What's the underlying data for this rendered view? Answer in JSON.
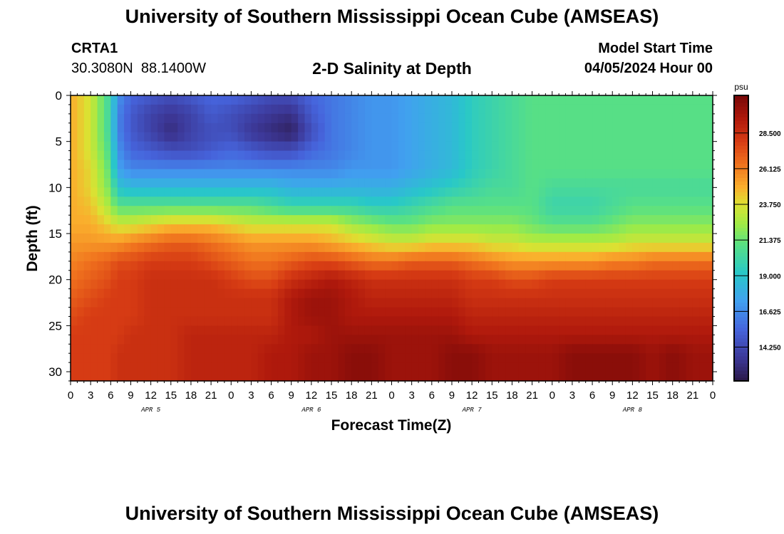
{
  "header": {
    "title": "University of Southern Mississippi Ocean Cube (AMSEAS)",
    "station_id": "CRTA1",
    "station_coords": "30.3080N  88.1400W",
    "subtitle": "2-D Salinity at Depth",
    "model_start_label": "Model Start Time",
    "model_start_value": "04/05/2024 Hour 00"
  },
  "footer": {
    "title": "University of Southern Mississippi Ocean Cube (AMSEAS)"
  },
  "chart_data": {
    "type": "heatmap",
    "title": "2-D Salinity at Depth",
    "xlabel": "Forecast Time(Z)",
    "ylabel": "Depth (ft)",
    "x_tick_labels": [
      "0",
      "3",
      "6",
      "9",
      "12",
      "15",
      "18",
      "21",
      "0",
      "3",
      "6",
      "9",
      "12",
      "15",
      "18",
      "21",
      "0",
      "3",
      "6",
      "9",
      "12",
      "15",
      "18",
      "21",
      "0",
      "3",
      "6",
      "9",
      "12",
      "15",
      "18",
      "21",
      "0"
    ],
    "date_labels": [
      "APR 5",
      "APR 6",
      "APR 7",
      "APR 8"
    ],
    "y_ticks": [
      0,
      5,
      10,
      15,
      20,
      25,
      30
    ],
    "y_range": [
      0,
      31
    ],
    "x_range_hours": [
      0,
      96
    ],
    "colorbar": {
      "unit": "psu",
      "ticks": [
        28.5,
        26.125,
        23.75,
        21.375,
        19.0,
        16.625,
        14.25
      ],
      "tick_labels": [
        "28.500",
        "26.125",
        "23.750",
        "21.375",
        "19.000",
        "16.625",
        "14.250"
      ],
      "range": [
        12.0,
        31.0
      ]
    },
    "x_hours": [
      0,
      3,
      6,
      7,
      9,
      12,
      15,
      18,
      21,
      24,
      27,
      30,
      33,
      36,
      39,
      42,
      45,
      48,
      51,
      54,
      57,
      60,
      63,
      66,
      69,
      72,
      75,
      78,
      81,
      84,
      87,
      90,
      93,
      96
    ],
    "depths": [
      0,
      2,
      4,
      6,
      8,
      10,
      12,
      14,
      16,
      18,
      20,
      22,
      24,
      26,
      28,
      31
    ],
    "salinity": [
      [
        25.0,
        23.5,
        20.0,
        17.0,
        15.5,
        15.0,
        14.5,
        15.0,
        15.5,
        15.5,
        15.0,
        14.5,
        14.5,
        15.5,
        16.0,
        16.5,
        17.0,
        17.0,
        17.5,
        18.0,
        18.5,
        19.5,
        20.0,
        20.5,
        21.0,
        21.0,
        21.0,
        21.0,
        21.0,
        21.0,
        21.0,
        21.0,
        21.0,
        21.0
      ],
      [
        25.0,
        23.5,
        20.0,
        16.5,
        15.0,
        14.0,
        13.5,
        14.0,
        15.0,
        14.5,
        14.0,
        13.5,
        13.2,
        15.0,
        16.0,
        16.5,
        17.0,
        17.0,
        17.5,
        18.0,
        18.5,
        19.5,
        20.0,
        20.5,
        21.0,
        21.0,
        21.0,
        21.0,
        21.0,
        21.0,
        21.0,
        21.0,
        21.0,
        21.0
      ],
      [
        25.0,
        23.5,
        20.0,
        16.5,
        15.0,
        14.0,
        13.0,
        14.0,
        14.5,
        14.5,
        13.5,
        13.0,
        12.5,
        14.5,
        16.0,
        16.5,
        17.0,
        17.0,
        17.5,
        18.0,
        18.5,
        19.5,
        20.0,
        20.5,
        21.0,
        21.0,
        21.0,
        21.0,
        21.0,
        21.0,
        21.0,
        21.0,
        21.0,
        21.0
      ],
      [
        25.0,
        23.5,
        20.5,
        17.0,
        15.5,
        15.0,
        14.5,
        14.5,
        15.0,
        15.5,
        15.0,
        14.5,
        14.5,
        15.5,
        16.0,
        16.5,
        17.0,
        17.0,
        17.5,
        18.0,
        18.5,
        19.5,
        20.0,
        20.5,
        21.0,
        21.0,
        21.0,
        21.0,
        21.0,
        21.0,
        21.0,
        21.0,
        21.0,
        21.0
      ],
      [
        25.0,
        24.0,
        21.0,
        17.5,
        16.5,
        16.5,
        16.5,
        16.5,
        16.5,
        16.5,
        16.5,
        16.5,
        16.5,
        16.5,
        16.5,
        17.0,
        17.0,
        17.0,
        17.5,
        18.0,
        18.5,
        19.5,
        20.0,
        20.5,
        21.0,
        21.0,
        21.0,
        21.0,
        21.0,
        21.0,
        21.0,
        21.0,
        21.0,
        21.0
      ],
      [
        25.0,
        24.0,
        21.5,
        19.0,
        18.5,
        18.5,
        18.5,
        18.5,
        18.5,
        18.5,
        18.5,
        18.5,
        18.0,
        18.0,
        18.0,
        18.0,
        18.0,
        18.0,
        18.5,
        19.0,
        19.5,
        20.0,
        20.5,
        20.5,
        21.0,
        20.5,
        20.5,
        20.5,
        20.5,
        20.5,
        20.5,
        20.5,
        20.5,
        20.5
      ],
      [
        25.0,
        24.5,
        22.5,
        21.0,
        21.0,
        21.0,
        21.0,
        21.0,
        21.0,
        21.0,
        21.0,
        20.5,
        20.0,
        20.0,
        20.0,
        20.0,
        19.5,
        19.5,
        20.0,
        20.5,
        21.0,
        21.0,
        21.0,
        21.0,
        21.0,
        20.0,
        20.0,
        20.0,
        20.5,
        21.0,
        21.0,
        21.0,
        21.0,
        21.0
      ],
      [
        25.0,
        25.0,
        24.0,
        23.5,
        23.5,
        24.0,
        24.5,
        24.5,
        24.5,
        24.0,
        23.5,
        23.5,
        23.5,
        23.5,
        23.5,
        22.5,
        22.0,
        21.5,
        21.5,
        22.0,
        22.0,
        22.0,
        22.0,
        22.0,
        21.5,
        21.0,
        21.0,
        21.0,
        21.5,
        22.0,
        22.0,
        22.0,
        22.0,
        22.0
      ],
      [
        25.5,
        25.5,
        25.5,
        25.5,
        26.0,
        26.5,
        27.0,
        27.0,
        26.5,
        26.0,
        25.5,
        25.5,
        25.5,
        25.5,
        25.0,
        24.5,
        24.0,
        23.5,
        23.5,
        24.0,
        24.0,
        24.0,
        23.5,
        23.5,
        23.0,
        23.0,
        23.0,
        23.0,
        23.0,
        23.5,
        23.5,
        23.5,
        23.5,
        23.5
      ],
      [
        26.0,
        26.5,
        27.0,
        27.5,
        27.5,
        28.0,
        28.0,
        28.0,
        27.5,
        27.0,
        26.5,
        26.5,
        27.0,
        27.5,
        27.5,
        27.0,
        26.5,
        26.5,
        27.0,
        27.0,
        27.0,
        26.5,
        26.0,
        25.5,
        25.5,
        25.5,
        25.5,
        25.5,
        26.0,
        26.0,
        26.5,
        26.5,
        26.5,
        26.5
      ],
      [
        26.5,
        27.0,
        27.5,
        28.0,
        28.0,
        28.5,
        28.5,
        28.5,
        28.5,
        28.0,
        27.5,
        27.5,
        28.5,
        29.0,
        29.5,
        29.0,
        28.5,
        28.5,
        28.5,
        28.5,
        28.5,
        28.0,
        28.0,
        27.5,
        27.5,
        28.0,
        28.0,
        28.0,
        28.0,
        28.0,
        28.0,
        28.0,
        28.0,
        28.0
      ],
      [
        27.0,
        27.5,
        28.0,
        28.0,
        28.0,
        28.5,
        28.5,
        28.5,
        28.5,
        28.5,
        28.5,
        28.5,
        29.5,
        30.0,
        30.0,
        29.5,
        29.0,
        29.0,
        29.0,
        29.0,
        29.0,
        28.5,
        28.5,
        28.5,
        28.5,
        28.5,
        28.5,
        28.5,
        28.5,
        28.5,
        28.5,
        28.5,
        28.5,
        28.5
      ],
      [
        27.5,
        28.0,
        28.0,
        28.0,
        28.0,
        28.5,
        28.5,
        28.5,
        28.5,
        28.5,
        28.5,
        28.5,
        29.5,
        30.0,
        30.0,
        29.5,
        29.5,
        29.5,
        29.5,
        29.5,
        29.5,
        29.0,
        29.0,
        29.0,
        29.0,
        29.0,
        29.0,
        29.0,
        29.0,
        29.0,
        29.0,
        29.0,
        29.0,
        29.0
      ],
      [
        28.0,
        28.0,
        28.0,
        28.0,
        28.5,
        28.5,
        28.5,
        29.0,
        29.0,
        29.0,
        29.0,
        29.0,
        29.5,
        29.5,
        30.0,
        30.0,
        30.0,
        30.0,
        30.0,
        30.0,
        30.0,
        29.5,
        29.5,
        29.5,
        29.5,
        29.5,
        29.5,
        29.5,
        29.5,
        29.5,
        29.5,
        29.5,
        29.5,
        29.5
      ],
      [
        28.0,
        28.0,
        28.0,
        28.5,
        28.5,
        28.5,
        28.5,
        29.0,
        29.0,
        29.0,
        29.0,
        29.5,
        29.5,
        30.0,
        30.0,
        30.5,
        30.5,
        30.0,
        30.0,
        30.0,
        30.5,
        30.5,
        30.0,
        30.0,
        30.0,
        30.0,
        30.5,
        30.5,
        30.5,
        30.5,
        30.0,
        30.5,
        30.0,
        30.0
      ],
      [
        28.0,
        28.0,
        28.0,
        28.5,
        28.5,
        28.5,
        28.5,
        29.0,
        29.0,
        29.0,
        29.0,
        29.5,
        29.5,
        30.0,
        30.0,
        30.5,
        30.5,
        30.0,
        30.0,
        30.0,
        30.5,
        30.5,
        30.0,
        30.0,
        30.0,
        30.0,
        30.5,
        30.5,
        30.5,
        30.5,
        30.0,
        30.5,
        30.0,
        30.0
      ]
    ]
  }
}
